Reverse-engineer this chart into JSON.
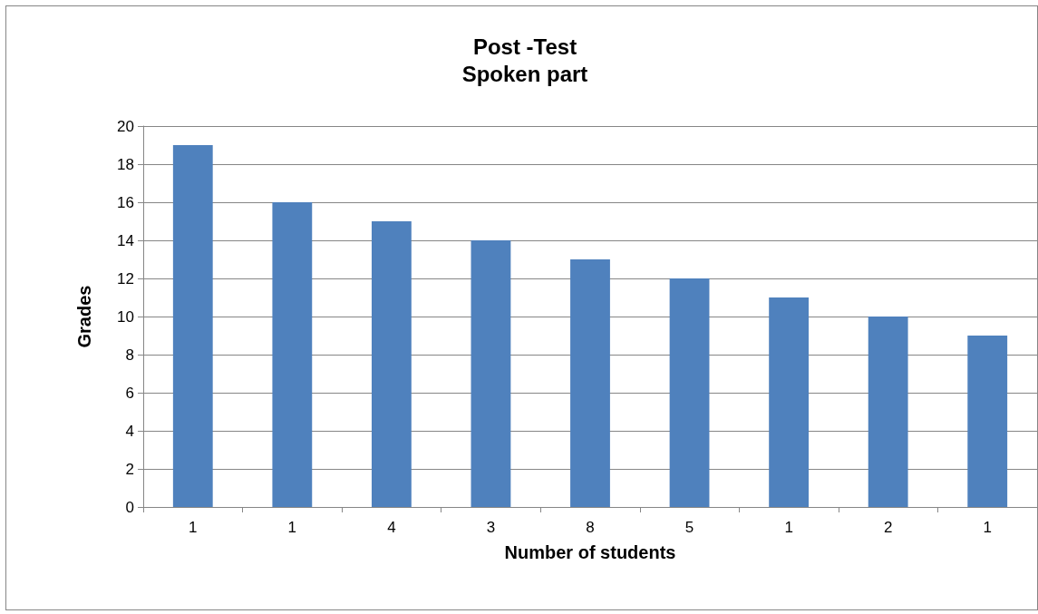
{
  "chart_data": {
    "type": "bar",
    "title": "Post -Test\nSpoken part",
    "xlabel": "Number of students",
    "ylabel": "Grades",
    "categories": [
      "1",
      "1",
      "4",
      "3",
      "8",
      "5",
      "1",
      "2",
      "1"
    ],
    "values": [
      19,
      16,
      15,
      14,
      13,
      12,
      11,
      10,
      9
    ],
    "color": "#4f81bd",
    "ylim": [
      0,
      20
    ],
    "yticks": [
      0,
      2,
      4,
      6,
      8,
      10,
      12,
      14,
      16,
      18,
      20
    ],
    "grid": "y"
  }
}
